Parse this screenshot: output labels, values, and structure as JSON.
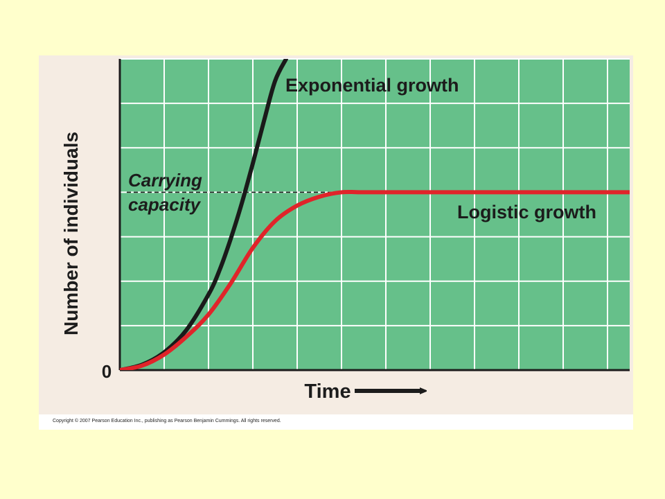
{
  "chart_data": {
    "type": "line",
    "xlabel": "Time",
    "ylabel": "Number of individuals",
    "y_tick_labels": [
      "0"
    ],
    "xlim": [
      0,
      11.5
    ],
    "ylim": [
      0,
      7
    ],
    "grid": true,
    "carrying_capacity": {
      "label_line1": "Carrying",
      "label_line2": "capacity",
      "value": 4
    },
    "series": [
      {
        "name": "Exponential growth",
        "color": "#1a1a1a",
        "x": [
          0,
          0.5,
          1,
          1.5,
          2,
          2.25,
          2.5,
          2.75,
          3,
          3.25,
          3.5,
          3.75
        ],
        "y": [
          0,
          0.12,
          0.4,
          0.9,
          1.7,
          2.25,
          2.95,
          3.75,
          4.65,
          5.6,
          6.5,
          7.0
        ]
      },
      {
        "name": "Logistic growth",
        "color": "#e0242a",
        "x": [
          0,
          0.5,
          1,
          1.5,
          2,
          2.5,
          3,
          3.5,
          4,
          4.5,
          5,
          5.5,
          6,
          7,
          8,
          9,
          10,
          11.5
        ],
        "y": [
          0,
          0.1,
          0.35,
          0.75,
          1.25,
          1.95,
          2.75,
          3.35,
          3.7,
          3.9,
          4.0,
          4.0,
          4.0,
          4.0,
          4.0,
          4.0,
          4.0,
          4.0
        ]
      }
    ],
    "colors": {
      "plot_background": "#66c08a",
      "grid_lines": "#ffffff",
      "axis": "#1c1c1c",
      "page_background": "#ffffcc",
      "panel_background": "#f5ece3"
    }
  },
  "footer": {
    "copyright": "Copyright © 2007 Pearson Education Inc., publishing as Pearson Benjamin Cummings. All rights reserved."
  }
}
